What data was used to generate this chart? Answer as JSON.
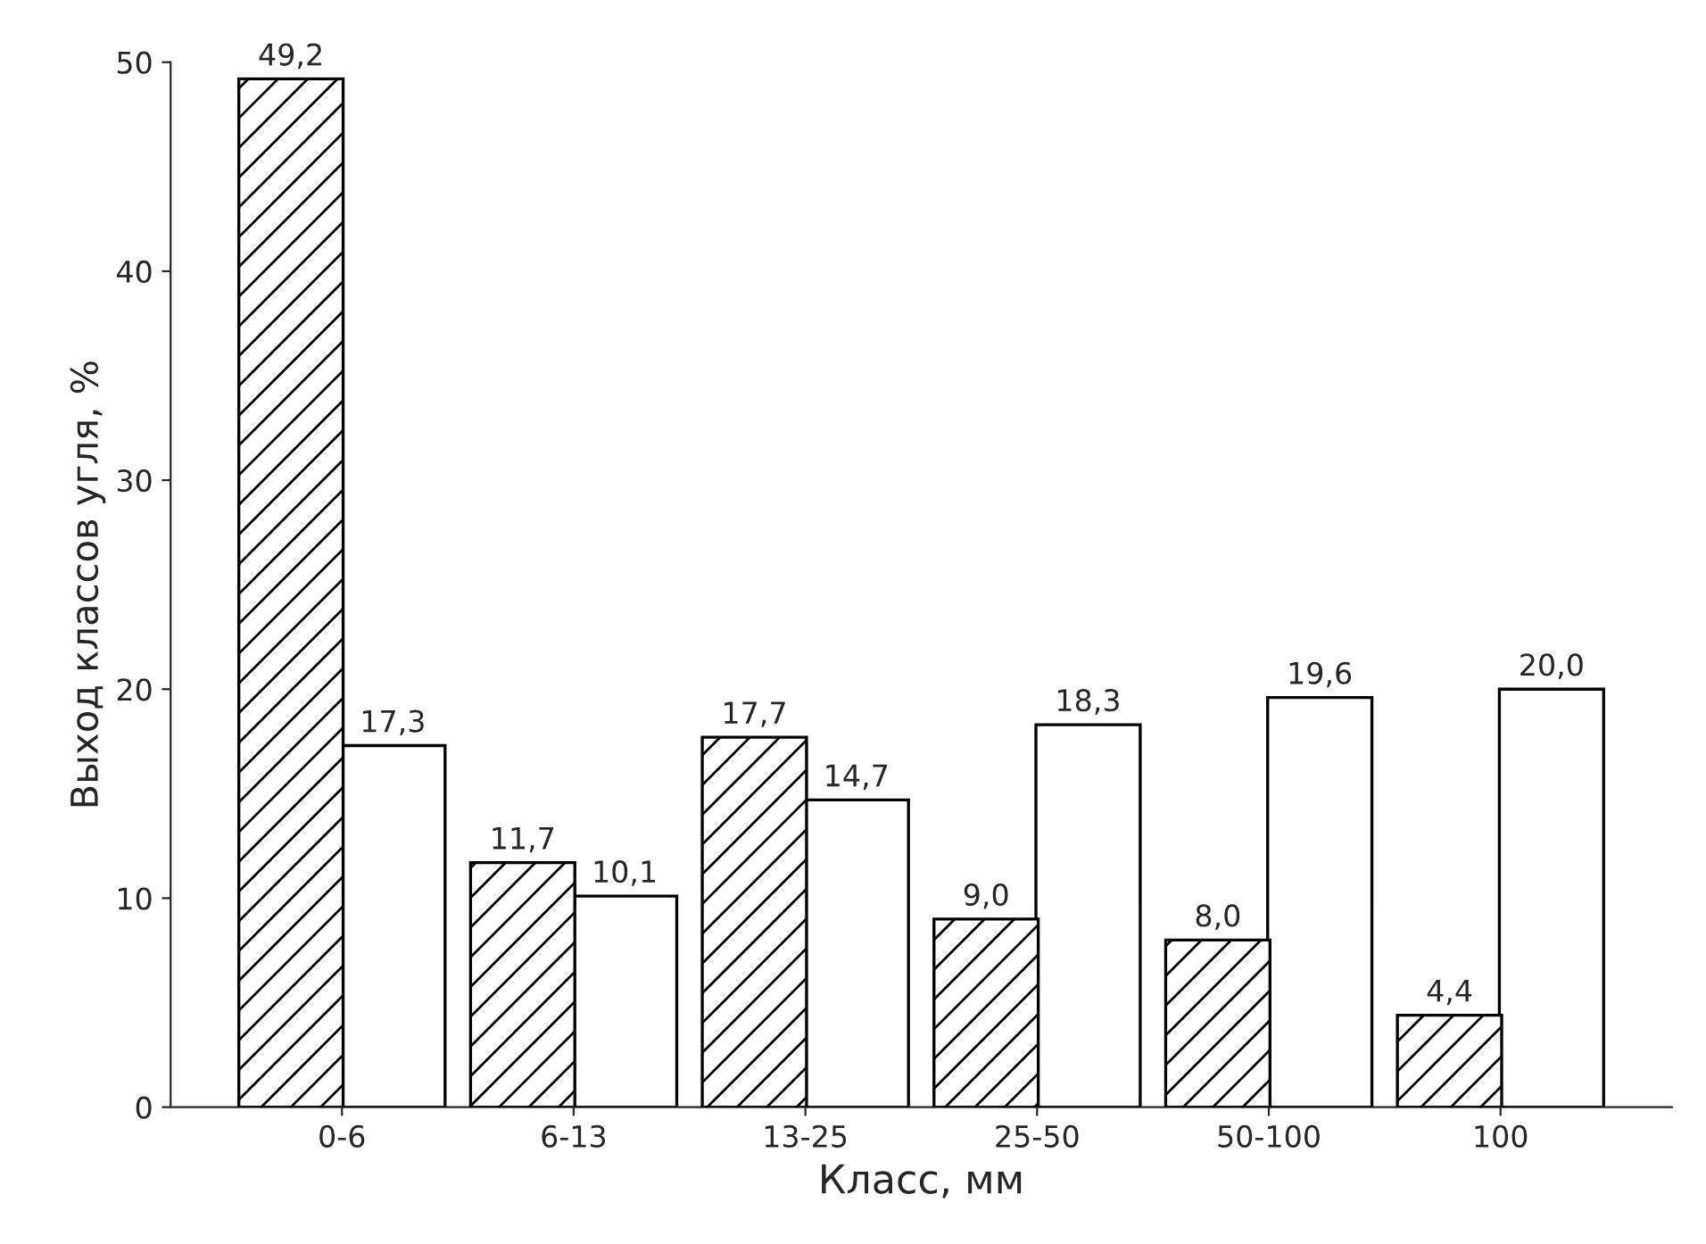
{
  "chart_data": {
    "type": "bar",
    "xlabel": "Класс, мм",
    "ylabel": "Выход классов угля, %",
    "categories": [
      "0-6",
      "6-13",
      "13-25",
      "25-50",
      "50-100",
      "100"
    ],
    "series": [
      {
        "color": "#000000",
        "values": [
          49.2,
          11.7,
          17.7,
          9.0,
          8.0,
          4.4
        ],
        "value_labels": [
          "49,2",
          "11,7",
          "17,7",
          "9,0",
          "8,0",
          "4,4"
        ]
      },
      {
        "color": "#ffffff",
        "values": [
          17.3,
          10.1,
          14.7,
          18.3,
          19.6,
          20.0
        ],
        "value_labels": [
          "17,3",
          "10,1",
          "14,7",
          "18,3",
          "19,6",
          "20,0"
        ]
      }
    ],
    "ylim": [
      0,
      50
    ],
    "yticks": [
      0,
      10,
      20,
      30,
      40,
      50
    ],
    "grid": false
  }
}
